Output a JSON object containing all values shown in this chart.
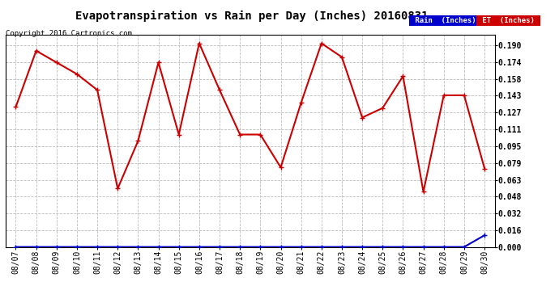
{
  "title": "Evapotranspiration vs Rain per Day (Inches) 20160831",
  "copyright": "Copyright 2016 Cartronics.com",
  "legend_rain": "Rain  (Inches)",
  "legend_et": "ET  (Inches)",
  "x_labels": [
    "08/07",
    "08/08",
    "08/09",
    "08/10",
    "08/11",
    "08/12",
    "08/13",
    "08/14",
    "08/15",
    "08/16",
    "08/17",
    "08/18",
    "08/19",
    "08/20",
    "08/21",
    "08/22",
    "08/23",
    "08/24",
    "08/25",
    "08/26",
    "08/27",
    "08/28",
    "08/29",
    "08/30"
  ],
  "et_values": [
    0.132,
    0.185,
    0.174,
    0.163,
    0.148,
    0.055,
    0.1,
    0.174,
    0.106,
    0.192,
    0.148,
    0.106,
    0.106,
    0.075,
    0.136,
    0.192,
    0.179,
    0.122,
    0.131,
    0.161,
    0.052,
    0.143,
    0.143,
    0.074
  ],
  "rain_values": [
    0.0,
    0.0,
    0.0,
    0.0,
    0.0,
    0.0,
    0.0,
    0.0,
    0.0,
    0.0,
    0.0,
    0.0,
    0.0,
    0.0,
    0.0,
    0.0,
    0.0,
    0.0,
    0.0,
    0.0,
    0.0,
    0.0,
    0.0,
    0.011
  ],
  "ylim": [
    0.0,
    0.2
  ],
  "yticks": [
    0.0,
    0.016,
    0.032,
    0.048,
    0.063,
    0.079,
    0.095,
    0.111,
    0.127,
    0.143,
    0.158,
    0.174,
    0.19
  ],
  "et_color": "#cc0000",
  "rain_color": "#0000cc",
  "grid_color": "#bbbbbb",
  "bg_color": "#ffffff",
  "title_fontsize": 10,
  "copyright_fontsize": 6.5,
  "tick_fontsize": 7,
  "legend_bg_rain": "#0000cc",
  "legend_bg_et": "#cc0000"
}
